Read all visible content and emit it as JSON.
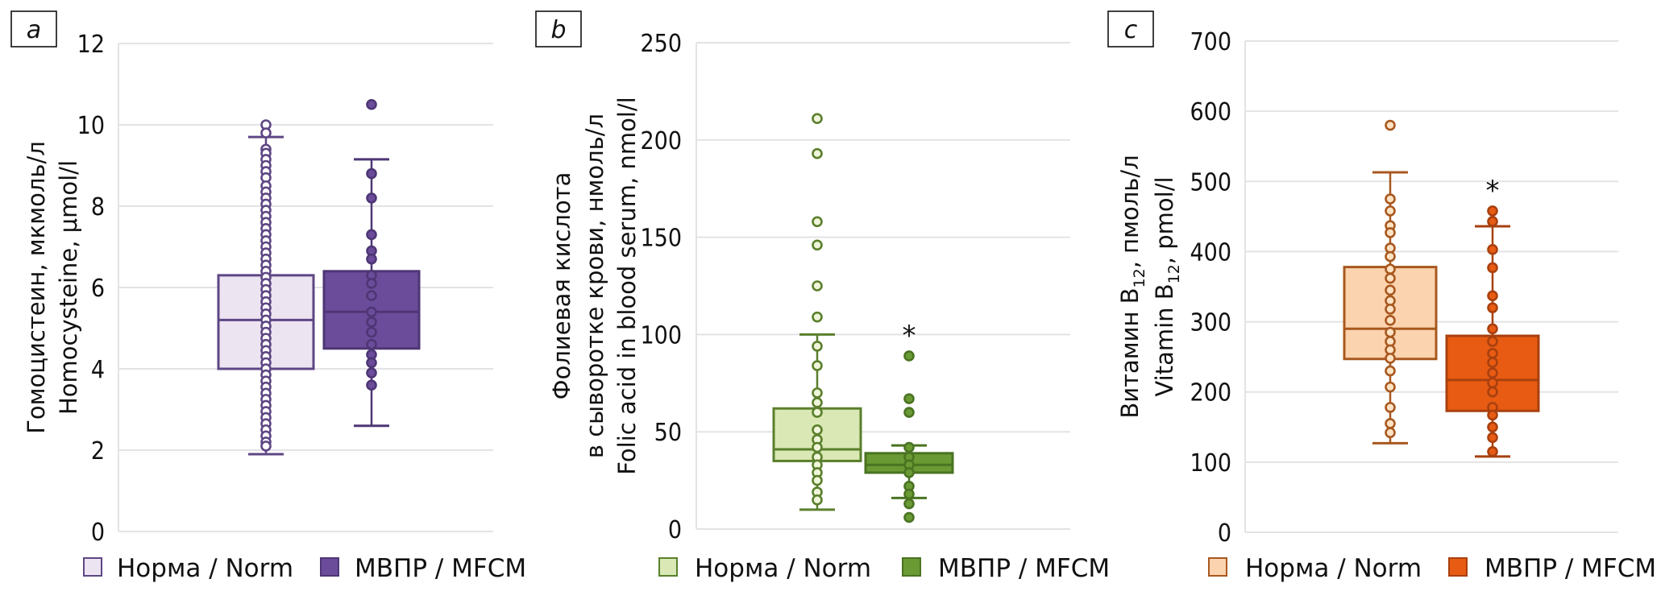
{
  "chart_data": [
    {
      "type": "box",
      "panel": "a",
      "title": "",
      "ylabel_lines": [
        "Гомоцистеин, мкмоль/л",
        "Homocysteine, μmol/l"
      ],
      "ylim": [
        0,
        12
      ],
      "yticks": [
        0,
        2,
        4,
        6,
        8,
        10,
        12
      ],
      "grid": true,
      "legend": "bottom",
      "series": [
        {
          "name": "Норма / Norm",
          "fill": "#ede4f2",
          "stroke": "#5e4784",
          "point_fill": "#ffffff",
          "q1": 4.0,
          "median": 5.2,
          "q3": 6.3,
          "whisker_low": 1.9,
          "whisker_high": 9.7,
          "points": [
            10.0,
            9.8,
            9.4,
            9.3,
            9.15,
            9.0,
            8.85,
            8.7,
            8.5,
            8.35,
            8.2,
            8.05,
            7.9,
            7.75,
            7.6,
            7.45,
            7.3,
            7.15,
            7.0,
            6.85,
            6.7,
            6.55,
            6.4,
            6.25,
            6.1,
            5.95,
            5.8,
            5.65,
            5.5,
            5.35,
            5.2,
            5.05,
            4.9,
            4.75,
            4.6,
            4.45,
            4.3,
            4.15,
            4.0,
            3.85,
            3.7,
            3.55,
            3.4,
            3.25,
            3.1,
            2.95,
            2.8,
            2.65,
            2.5,
            2.35,
            2.2,
            2.1
          ],
          "significant": false
        },
        {
          "name": "МВПР / MFCM",
          "fill": "#6b4c9a",
          "stroke": "#4e3675",
          "point_fill": "#6b4c9a",
          "q1": 4.5,
          "median": 5.4,
          "q3": 6.4,
          "whisker_low": 2.6,
          "whisker_high": 9.15,
          "points": [
            10.5,
            8.8,
            8.2,
            7.3,
            6.9,
            6.7,
            6.3,
            6.1,
            5.8,
            5.4,
            5.15,
            4.9,
            4.6,
            4.35,
            4.15,
            3.9,
            3.6
          ],
          "significant": false
        }
      ]
    },
    {
      "type": "box",
      "panel": "b",
      "title": "",
      "ylabel_lines": [
        "Фолиевая кислота",
        "в сыворотке крови, нмоль/л",
        "Folic acid in blood serum, nmol/l"
      ],
      "ylim": [
        0,
        250
      ],
      "yticks": [
        0,
        50,
        100,
        150,
        200,
        250
      ],
      "grid": true,
      "legend": "bottom",
      "series": [
        {
          "name": "Норма / Norm",
          "fill": "#d9e8b4",
          "stroke": "#5b7f2c",
          "point_fill": "#eef5d9",
          "q1": 35,
          "median": 41,
          "q3": 62,
          "whisker_low": 10,
          "whisker_high": 100,
          "points": [
            211,
            193,
            158,
            146,
            125,
            109,
            94,
            84,
            70,
            65,
            60,
            51,
            46,
            42,
            37,
            33,
            29,
            25,
            19,
            15
          ],
          "significant": false
        },
        {
          "name": "МВПР / MFCM",
          "fill": "#6a9a34",
          "stroke": "#4a7322",
          "point_fill": "#6a9a34",
          "q1": 29,
          "median": 33,
          "q3": 39,
          "whisker_low": 16,
          "whisker_high": 43,
          "points": [
            89,
            67,
            60,
            42,
            37,
            33,
            29,
            22,
            18,
            13,
            6
          ],
          "significant": true,
          "marker": "*"
        }
      ]
    },
    {
      "type": "box",
      "panel": "c",
      "title": "",
      "ylabel_lines": [
        "Витамин B12, пмоль/л",
        "Vitamin B12, pmol/l"
      ],
      "ylim": [
        0,
        700
      ],
      "yticks": [
        0,
        100,
        200,
        300,
        400,
        500,
        600,
        700
      ],
      "grid": true,
      "legend": "bottom",
      "series": [
        {
          "name": "Норма / Norm",
          "fill": "#fbd3ae",
          "stroke": "#a8581f",
          "point_fill": "#fde2c4",
          "q1": 247,
          "median": 290,
          "q3": 378,
          "whisker_low": 127,
          "whisker_high": 513,
          "points": [
            580,
            475,
            458,
            437,
            427,
            405,
            393,
            375,
            362,
            345,
            330,
            318,
            302,
            285,
            272,
            260,
            248,
            230,
            207,
            178,
            155,
            142
          ],
          "significant": false
        },
        {
          "name": "МВПР / MFCM",
          "fill": "#e85b12",
          "stroke": "#a8400f",
          "point_fill": "#e85b12",
          "q1": 173,
          "median": 217,
          "q3": 280,
          "whisker_low": 108,
          "whisker_high": 436,
          "points": [
            458,
            443,
            403,
            377,
            337,
            320,
            290,
            272,
            255,
            242,
            227,
            213,
            200,
            178,
            167,
            150,
            135,
            115
          ],
          "significant": true,
          "marker": "*"
        }
      ]
    }
  ],
  "panels": [
    {
      "letter": "a",
      "ylabel": [
        "Гомоцистеин, мкмоль/л",
        "Homocysteine, μmol/l"
      ],
      "legend": [
        "Норма / Norm",
        "МВПР / MFCM"
      ]
    },
    {
      "letter": "b",
      "ylabel": [
        "Фолиевая кислота",
        "в сыворотке крови, нмоль/л",
        "Folic acid in blood serum, nmol/l"
      ],
      "legend": [
        "Норма / Norm",
        "МВПР / MFCM"
      ]
    },
    {
      "letter": "c",
      "ylabel_parts": [
        {
          "pre": "Витамин B",
          "sub": "12",
          "post": ",  пмоль/л"
        },
        {
          "pre": "Vitamin B",
          "sub": "12",
          "post": ", pmol/l"
        }
      ],
      "legend": [
        "Норма / Norm",
        "МВПР / MFCM"
      ]
    }
  ],
  "grid_color": "#e3e3e6"
}
